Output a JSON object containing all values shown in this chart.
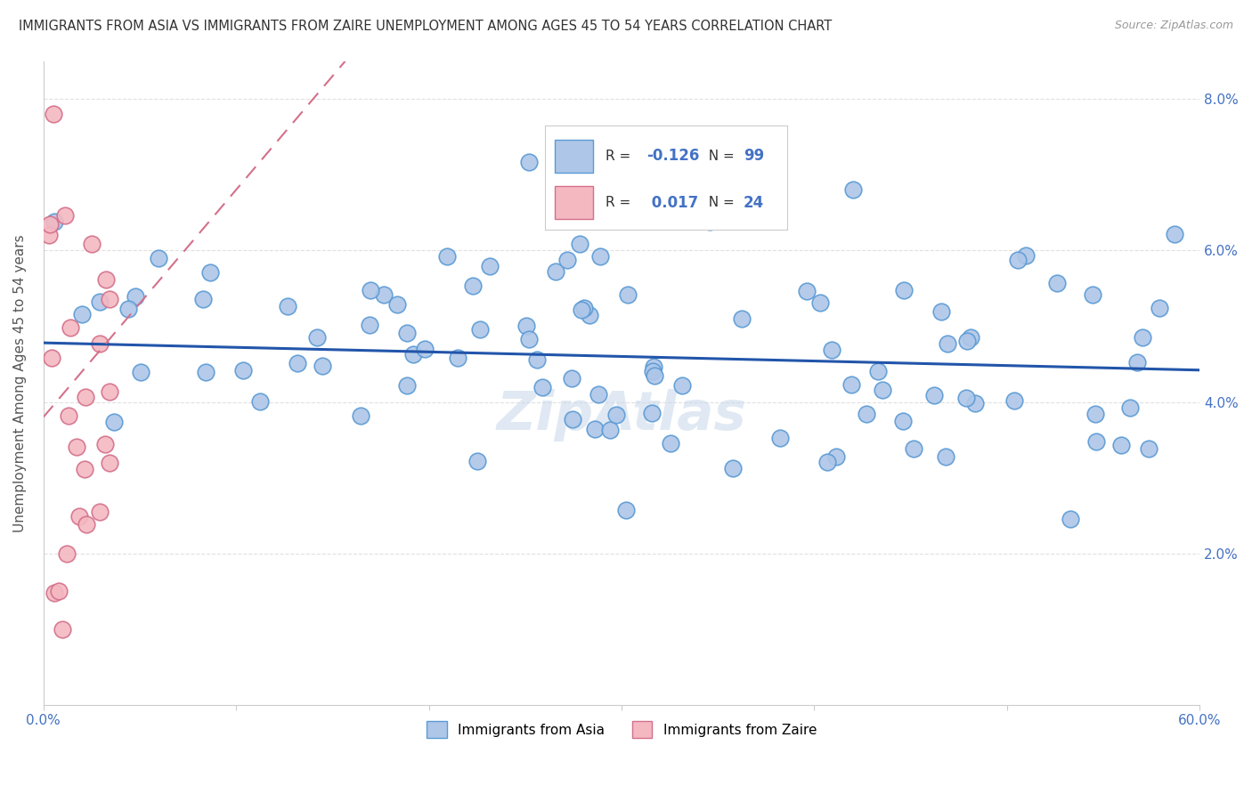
{
  "title": "IMMIGRANTS FROM ASIA VS IMMIGRANTS FROM ZAIRE UNEMPLOYMENT AMONG AGES 45 TO 54 YEARS CORRELATION CHART",
  "source": "Source: ZipAtlas.com",
  "ylabel": "Unemployment Among Ages 45 to 54 years",
  "xlim": [
    0.0,
    0.6
  ],
  "ylim": [
    0.0,
    0.085
  ],
  "ytick_right_labels": [
    "2.0%",
    "4.0%",
    "6.0%",
    "8.0%"
  ],
  "ytick_right_vals": [
    0.02,
    0.04,
    0.06,
    0.08
  ],
  "background_color": "#ffffff",
  "grid_color": "#e0e0e0",
  "asia_color": "#aec6e8",
  "asia_edge_color": "#5b9bd5",
  "zaire_color": "#f4b8c1",
  "zaire_edge_color": "#d4708a",
  "asia_trend_color": "#2255aa",
  "zaire_trend_color": "#d4708a",
  "R_asia": -0.126,
  "N_asia": 99,
  "R_zaire": 0.017,
  "N_zaire": 24,
  "legend_label_asia": "Immigrants from Asia",
  "legend_label_zaire": "Immigrants from Zaire"
}
